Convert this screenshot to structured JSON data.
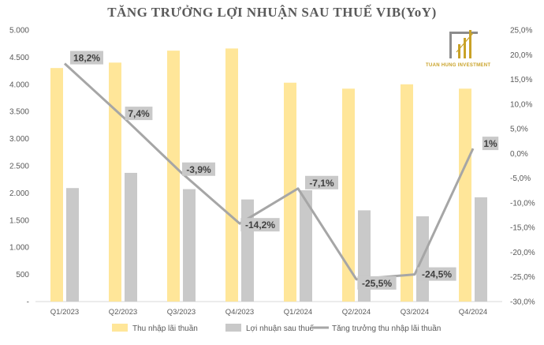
{
  "chart_data": {
    "type": "bar",
    "title": "TĂNG TRƯỞNG LỢI NHUẬN SAU THUẾ VIB(YoY)",
    "categories": [
      "Q1/2023",
      "Q2/2023",
      "Q3/2023",
      "Q4/2023",
      "Q1/2024",
      "Q2/2024",
      "Q3/2024",
      "Q4/2024"
    ],
    "series": [
      {
        "name": "Thu nhập lãi thuần",
        "kind": "bar",
        "axis": "left",
        "color": "#ffe699",
        "values": [
          4300,
          4400,
          4620,
          4660,
          4030,
          3920,
          4000,
          3920
        ]
      },
      {
        "name": "Lợi nhuận sau thuế",
        "kind": "bar",
        "axis": "left",
        "color": "#c9c9c9",
        "values": [
          2090,
          2370,
          2070,
          1880,
          2050,
          1680,
          1570,
          1920
        ]
      },
      {
        "name": "Tăng trưởng thu nhập lãi thuần",
        "kind": "line",
        "axis": "right",
        "color": "#a6a6a6",
        "values": [
          18.2,
          7.4,
          -3.9,
          -14.2,
          -7.1,
          -25.5,
          -24.5,
          1
        ],
        "labels": [
          "18,2%",
          "7,4%",
          "-3,9%",
          "-14,2%",
          "-7,1%",
          "-25,5%",
          "-24,5%",
          "1%"
        ]
      }
    ],
    "y_left": {
      "min": 0,
      "max": 5000,
      "step": 500,
      "tick_labels": [
        "-",
        "500",
        "1.000",
        "1.500",
        "2.000",
        "2.500",
        "3.000",
        "3.500",
        "4.000",
        "4.500",
        "5.000"
      ]
    },
    "y_right": {
      "min": -30,
      "max": 25,
      "step": 5,
      "tick_labels": [
        "-30,0%",
        "-25,0%",
        "-20,0%",
        "-15,0%",
        "-10,0%",
        "-5,0%",
        "0,0%",
        "5,0%",
        "10,0%",
        "15,0%",
        "20,0%",
        "25,0%"
      ]
    },
    "grid": false,
    "legend": "bottom"
  },
  "logo": {
    "text": "TUAN HUNG INVESTMENT",
    "color": "#c9a227"
  }
}
